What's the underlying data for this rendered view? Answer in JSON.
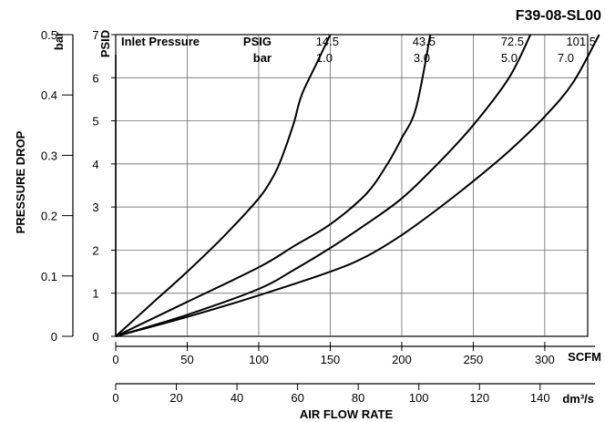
{
  "chart_data": {
    "type": "line",
    "title": "F39-08-SL00",
    "header": {
      "label": "Inlet Pressure",
      "psig_unit": "PSIG",
      "bar_unit": "bar",
      "psig_values": [
        "14.5",
        "43.5",
        "72.5",
        "101.5"
      ],
      "bar_values": [
        "1.0",
        "3.0",
        "5.0",
        "7.0"
      ]
    },
    "xlabel": "AIR FLOW RATE",
    "ylabel": "PRESSURE DROP",
    "y_primary": {
      "unit": "PSID",
      "range": [
        0,
        7
      ],
      "ticks": [
        "0",
        "1",
        "2",
        "3",
        "4",
        "5",
        "6",
        "7"
      ]
    },
    "y_secondary": {
      "unit": "bar",
      "range": [
        0,
        0.5
      ],
      "ticks": [
        "0",
        "0.1",
        "0.2",
        "0.3",
        "0.4",
        "0.5"
      ]
    },
    "x_primary": {
      "unit": "SCFM",
      "range": [
        0,
        330
      ],
      "ticks": [
        "0",
        "50",
        "100",
        "150",
        "200",
        "250",
        "300"
      ]
    },
    "x_secondary": {
      "unit": "dm³/s",
      "range": [
        0,
        155.7
      ],
      "ticks": [
        "0",
        "20",
        "40",
        "60",
        "80",
        "100",
        "120",
        "140"
      ]
    },
    "grid": true,
    "series": [
      {
        "x": [
          0,
          25,
          50,
          75,
          100,
          110,
          115,
          120,
          125,
          130,
          140,
          150
        ],
        "y": [
          0,
          0.75,
          1.5,
          2.3,
          3.2,
          3.7,
          4.05,
          4.5,
          5.0,
          5.6,
          6.3,
          7.0
        ]
      },
      {
        "x": [
          0,
          50,
          100,
          125,
          150,
          175,
          190,
          200,
          210,
          220
        ],
        "y": [
          0,
          0.8,
          1.6,
          2.1,
          2.6,
          3.3,
          4.0,
          4.6,
          5.3,
          7.0
        ]
      },
      {
        "x": [
          0,
          50,
          100,
          125,
          150,
          175,
          200,
          225,
          250,
          275,
          290
        ],
        "y": [
          0,
          0.5,
          1.1,
          1.55,
          2.05,
          2.6,
          3.2,
          4.0,
          4.9,
          6.0,
          7.0
        ]
      },
      {
        "x": [
          0,
          50,
          100,
          150,
          175,
          200,
          225,
          250,
          275,
          300,
          320,
          338
        ],
        "y": [
          0,
          0.45,
          0.95,
          1.5,
          1.85,
          2.35,
          2.95,
          3.6,
          4.3,
          5.1,
          5.9,
          7.0
        ]
      }
    ]
  }
}
